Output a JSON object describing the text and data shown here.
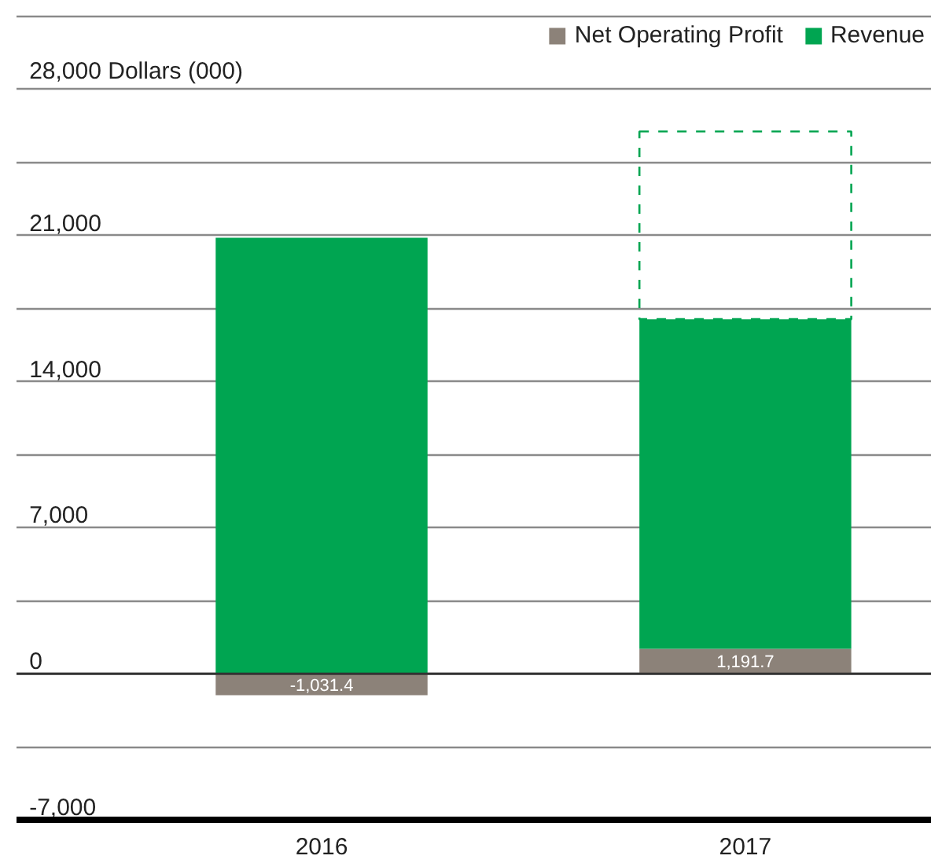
{
  "chart_data": {
    "type": "bar",
    "stacked": true,
    "categories": [
      "2016",
      "2017"
    ],
    "series": [
      {
        "name": "Net Operating Profit",
        "color": "#8c8279",
        "values": [
          -1031.4,
          1191.7
        ],
        "value_labels": [
          "-1,031.4",
          "1,191.7"
        ]
      },
      {
        "name": "Revenue",
        "color": "#00a551",
        "values": [
          20900,
          15800
        ]
      },
      {
        "color": "#00a551",
        "values": [
          null,
          9000
        ],
        "line_style": "dashed"
      }
    ],
    "ylim": [
      -7000,
      31500
    ],
    "yticks": [
      {
        "value": -7000,
        "label": "-7,000"
      },
      {
        "value": -3500,
        "label": null
      },
      0,
      {
        "value": 3500,
        "label": null
      },
      {
        "value": 7000,
        "label": "7,000"
      },
      {
        "value": 10500,
        "label": null
      },
      {
        "value": 14000,
        "label": "14,000"
      },
      {
        "value": 17500,
        "label": null
      },
      {
        "value": 21000,
        "label": "21,000"
      },
      {
        "value": 24500,
        "label": null
      },
      {
        "value": 28000,
        "label": "28,000 Dollars (000)"
      },
      {
        "value": 31500,
        "label": null
      }
    ],
    "ref_lines": [
      {
        "axis": "y",
        "value": 0,
        "color": "#333333"
      }
    ],
    "grid": "y",
    "legend": "top right"
  }
}
